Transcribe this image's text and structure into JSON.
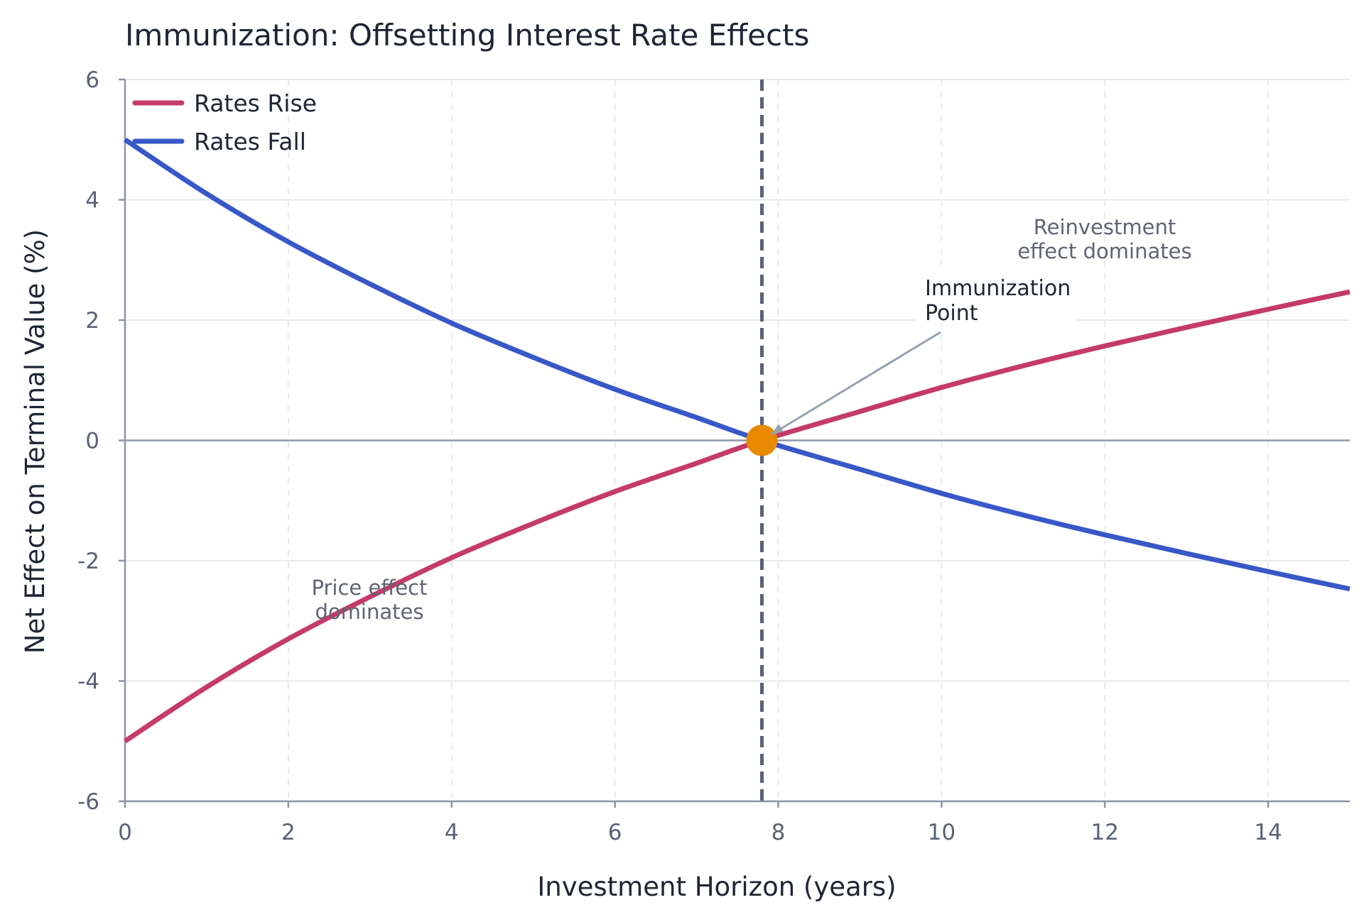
{
  "chart_data": {
    "type": "line",
    "title": "Immunization: Offsetting Interest Rate Effects",
    "xlabel": "Investment Horizon (years)",
    "ylabel": "Net Effect on Terminal Value (%)",
    "xlim": [
      0,
      15
    ],
    "ylim": [
      -6,
      6
    ],
    "xticks": [
      0,
      2,
      4,
      6,
      8,
      10,
      12,
      14
    ],
    "yticks": [
      -6,
      -4,
      -2,
      0,
      2,
      4,
      6
    ],
    "grid": true,
    "legend_position": "top-left",
    "series": [
      {
        "name": "Rates Rise",
        "color": "#c43b6a",
        "x": [
          0,
          1,
          2,
          3,
          4,
          5,
          6,
          7,
          7.8,
          9,
          10,
          11,
          12,
          13,
          14,
          15
        ],
        "y": [
          -5.0,
          -4.1,
          -3.3,
          -2.6,
          -1.95,
          -1.38,
          -0.85,
          -0.38,
          0.0,
          0.48,
          0.88,
          1.24,
          1.57,
          1.88,
          2.18,
          2.47
        ]
      },
      {
        "name": "Rates Fall",
        "color": "#3858c8",
        "x": [
          0,
          1,
          2,
          3,
          4,
          5,
          6,
          7,
          7.8,
          9,
          10,
          11,
          12,
          13,
          14,
          15
        ],
        "y": [
          5.0,
          4.1,
          3.3,
          2.6,
          1.95,
          1.38,
          0.85,
          0.38,
          0.0,
          -0.48,
          -0.88,
          -1.24,
          -1.57,
          -1.88,
          -2.18,
          -2.47
        ]
      }
    ],
    "immunization_point": {
      "x": 7.8,
      "y": 0,
      "color": "#e88a00"
    },
    "vline": {
      "x": 7.8,
      "color": "#5a6275"
    },
    "annotations": {
      "point_label": [
        "Immunization",
        "Point"
      ],
      "right_region": [
        "Reinvestment",
        "effect dominates"
      ],
      "left_region": [
        "Price effect",
        "dominates"
      ]
    }
  }
}
